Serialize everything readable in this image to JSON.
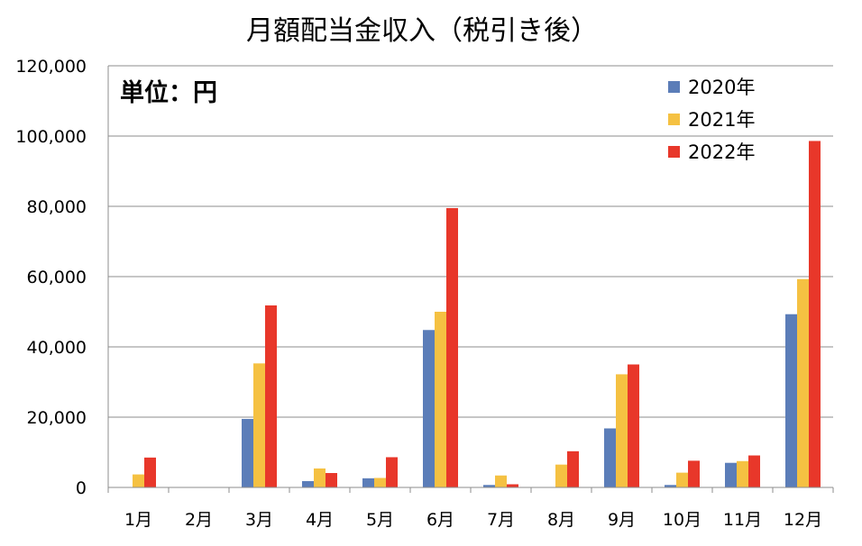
{
  "chart_data": {
    "type": "bar",
    "title": "月額配当金収入（税引き後）",
    "unit_label": "単位：円",
    "categories": [
      "1月",
      "2月",
      "3月",
      "4月",
      "5月",
      "6月",
      "7月",
      "8月",
      "9月",
      "10月",
      "11月",
      "12月"
    ],
    "series": [
      {
        "name": "2020年",
        "color": "#5B7DB8",
        "values": [
          0,
          0,
          19500,
          1800,
          2600,
          44800,
          700,
          0,
          16800,
          700,
          7000,
          49300
        ]
      },
      {
        "name": "2021年",
        "color": "#F5C142",
        "values": [
          3700,
          0,
          35300,
          5400,
          2700,
          50000,
          3400,
          6500,
          32200,
          4200,
          7500,
          59300
        ]
      },
      {
        "name": "2022年",
        "color": "#E8372A",
        "values": [
          8500,
          0,
          51800,
          4100,
          8600,
          79500,
          900,
          10300,
          35000,
          7600,
          9100,
          98600
        ]
      }
    ],
    "yticks": [
      "0",
      "20,000",
      "40,000",
      "60,000",
      "80,000",
      "100,000",
      "120,000"
    ],
    "ylim": [
      0,
      120000
    ],
    "ystep": 20000,
    "grid": true,
    "legend_position": "top-right"
  }
}
